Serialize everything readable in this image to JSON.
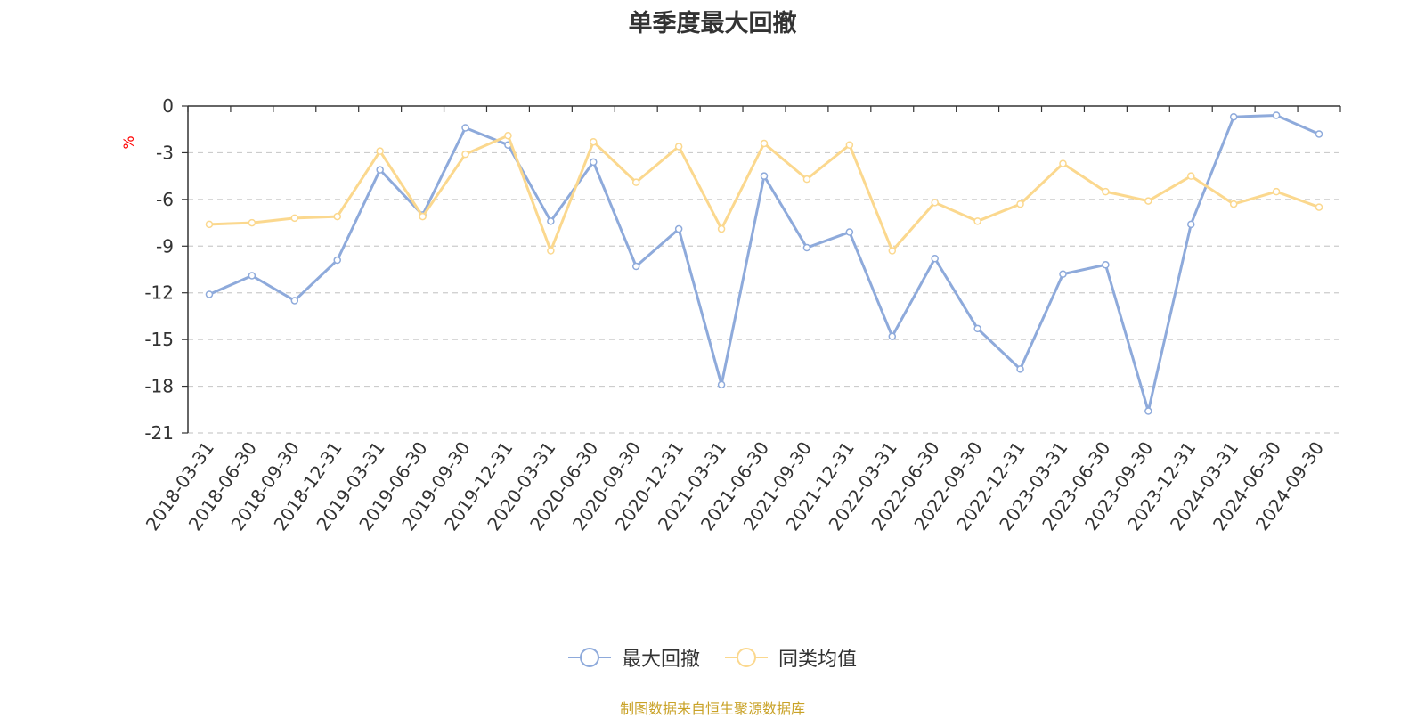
{
  "chart_data": {
    "type": "line",
    "title": "单季度最大回撤",
    "ylabel": "%",
    "xlabel": "",
    "ylim": [
      -21,
      0
    ],
    "yticks": [
      "0",
      "-3",
      "-6",
      "-9",
      "-12",
      "-15",
      "-18",
      "-21"
    ],
    "grid": true,
    "legend_position": "bottom-center",
    "categories": [
      "2018-03-31",
      "2018-06-30",
      "2018-09-30",
      "2018-12-31",
      "2019-03-31",
      "2019-06-30",
      "2019-09-30",
      "2019-12-31",
      "2020-03-31",
      "2020-06-30",
      "2020-09-30",
      "2020-12-31",
      "2021-03-31",
      "2021-06-30",
      "2021-09-30",
      "2021-12-31",
      "2022-03-31",
      "2022-06-30",
      "2022-09-30",
      "2022-12-31",
      "2023-03-31",
      "2023-06-30",
      "2023-09-30",
      "2023-12-31",
      "2024-03-31",
      "2024-06-30",
      "2024-09-30"
    ],
    "series": [
      {
        "name": "最大回撤",
        "color": "#8eaadb",
        "values": [
          -12.1,
          -10.9,
          -12.5,
          -9.9,
          -4.1,
          -7.0,
          -1.4,
          -2.5,
          -7.4,
          -3.6,
          -10.3,
          -7.9,
          -17.9,
          -4.5,
          -9.1,
          -8.1,
          -14.8,
          -9.8,
          -14.3,
          -16.9,
          -10.8,
          -10.2,
          -19.6,
          -7.6,
          -0.7,
          -0.6,
          -1.8
        ]
      },
      {
        "name": "同类均值",
        "color": "#fbd88e",
        "values": [
          -7.6,
          -7.5,
          -7.2,
          -7.1,
          -2.9,
          -7.1,
          -3.1,
          -1.9,
          -9.3,
          -2.3,
          -4.9,
          -2.6,
          -7.9,
          -2.4,
          -4.7,
          -2.5,
          -9.3,
          -6.2,
          -7.4,
          -6.3,
          -3.7,
          -5.5,
          -6.1,
          -4.5,
          -6.3,
          -5.5,
          -6.5
        ]
      }
    ]
  },
  "source": "制图数据来自恒生聚源数据库"
}
